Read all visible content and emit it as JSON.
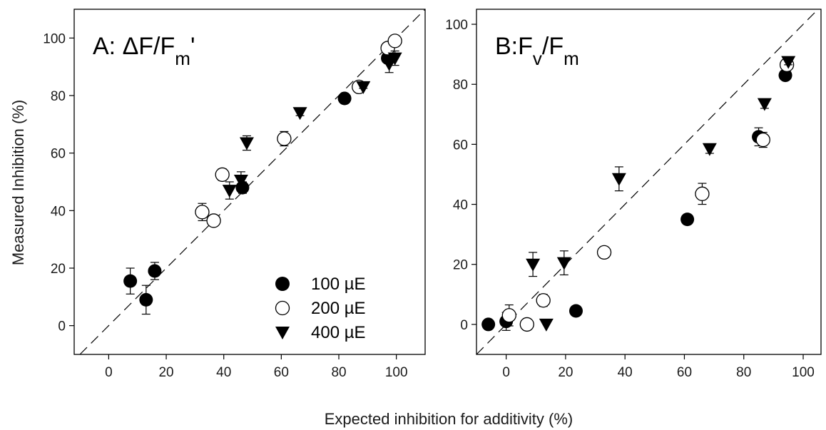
{
  "chart_data": [
    {
      "type": "scatter",
      "panel_label": "A: ΔF/F",
      "panel_subscript": "m",
      "panel_suffix": "'",
      "xlim": [
        -12,
        110
      ],
      "ylim": [
        -10,
        110
      ],
      "xticks": [
        0,
        20,
        40,
        60,
        80,
        100
      ],
      "yticks": [
        0,
        20,
        40,
        60,
        80,
        100
      ],
      "ylabel": "Measured Inhibition (%)",
      "reference_line": "dashed 1:1",
      "legend_position": "bottom-right",
      "series": [
        {
          "name": "100 µE",
          "marker": "filled-circle",
          "points": [
            [
              7.5,
              15.5
            ],
            [
              13,
              9
            ],
            [
              16,
              19
            ],
            [
              46.5,
              48
            ],
            [
              82,
              79
            ],
            [
              97,
              93
            ]
          ],
          "err_up": [
            4.5,
            5,
            3,
            2,
            0,
            0
          ],
          "err_down": [
            4.5,
            5,
            3,
            2,
            0,
            0
          ]
        },
        {
          "name": "200 µE",
          "marker": "open-circle",
          "points": [
            [
              32.5,
              39.5
            ],
            [
              36.5,
              36.5
            ],
            [
              39.5,
              52.5
            ],
            [
              61,
              65
            ],
            [
              87,
              83
            ],
            [
              97,
              96.5
            ],
            [
              99.5,
              99
            ]
          ],
          "err_up": [
            3,
            1.5,
            2,
            2.5,
            0,
            0,
            0
          ],
          "err_down": [
            3,
            1.5,
            2,
            2.5,
            0,
            0,
            0
          ]
        },
        {
          "name": "400 µE",
          "marker": "filled-triangle-down",
          "points": [
            [
              42,
              47
            ],
            [
              46,
              50.5
            ],
            [
              48,
              63.5
            ],
            [
              66.5,
              74
            ],
            [
              88.5,
              83
            ],
            [
              97.5,
              91
            ],
            [
              99.5,
              93
            ]
          ],
          "err_up": [
            3,
            3,
            2.5,
            1,
            0.5,
            3,
            2.5
          ],
          "err_down": [
            3,
            3,
            2.5,
            1,
            0.5,
            3,
            2.5
          ]
        }
      ]
    },
    {
      "type": "scatter",
      "panel_label": "B:F",
      "panel_subscript": "v",
      "panel_middle": "/F",
      "panel_subscript2": "m",
      "xlim": [
        -10,
        106
      ],
      "ylim": [
        -10,
        105
      ],
      "xticks": [
        0,
        20,
        40,
        60,
        80,
        100
      ],
      "yticks": [
        0,
        20,
        40,
        60,
        80,
        100
      ],
      "reference_line": "dashed 1:1",
      "series": [
        {
          "name": "100 µE",
          "marker": "filled-circle",
          "points": [
            [
              -6,
              0
            ],
            [
              0,
              1
            ],
            [
              23.5,
              4.5
            ],
            [
              61,
              35
            ],
            [
              85,
              62.5
            ],
            [
              94,
              83
            ]
          ],
          "err_up": [
            0,
            3,
            0,
            0,
            3,
            0
          ],
          "err_down": [
            0,
            3,
            0,
            0,
            3,
            0
          ]
        },
        {
          "name": "200 µE",
          "marker": "open-circle",
          "points": [
            [
              1,
              3
            ],
            [
              7,
              0
            ],
            [
              12.5,
              8
            ],
            [
              33,
              24
            ],
            [
              66,
              43.5
            ],
            [
              86.5,
              61.5
            ],
            [
              94.5,
              86.5
            ]
          ],
          "err_up": [
            3.5,
            0,
            2,
            0,
            3.5,
            2.5,
            0
          ],
          "err_down": [
            3.5,
            0,
            2,
            0,
            3.5,
            2.5,
            0
          ]
        },
        {
          "name": "400 µE",
          "marker": "filled-triangle-down",
          "points": [
            [
              9,
              20
            ],
            [
              13.5,
              0
            ],
            [
              19.5,
              20.5
            ],
            [
              38,
              48.5
            ],
            [
              68.5,
              58.5
            ],
            [
              87,
              73.5
            ],
            [
              95,
              87.5
            ]
          ],
          "err_up": [
            4,
            0,
            4,
            4,
            1.5,
            1.5,
            1
          ],
          "err_down": [
            4,
            0,
            4,
            4,
            1.5,
            1.5,
            1
          ]
        }
      ]
    }
  ],
  "shared_xlabel": "Expected inhibition for additivity (%)"
}
